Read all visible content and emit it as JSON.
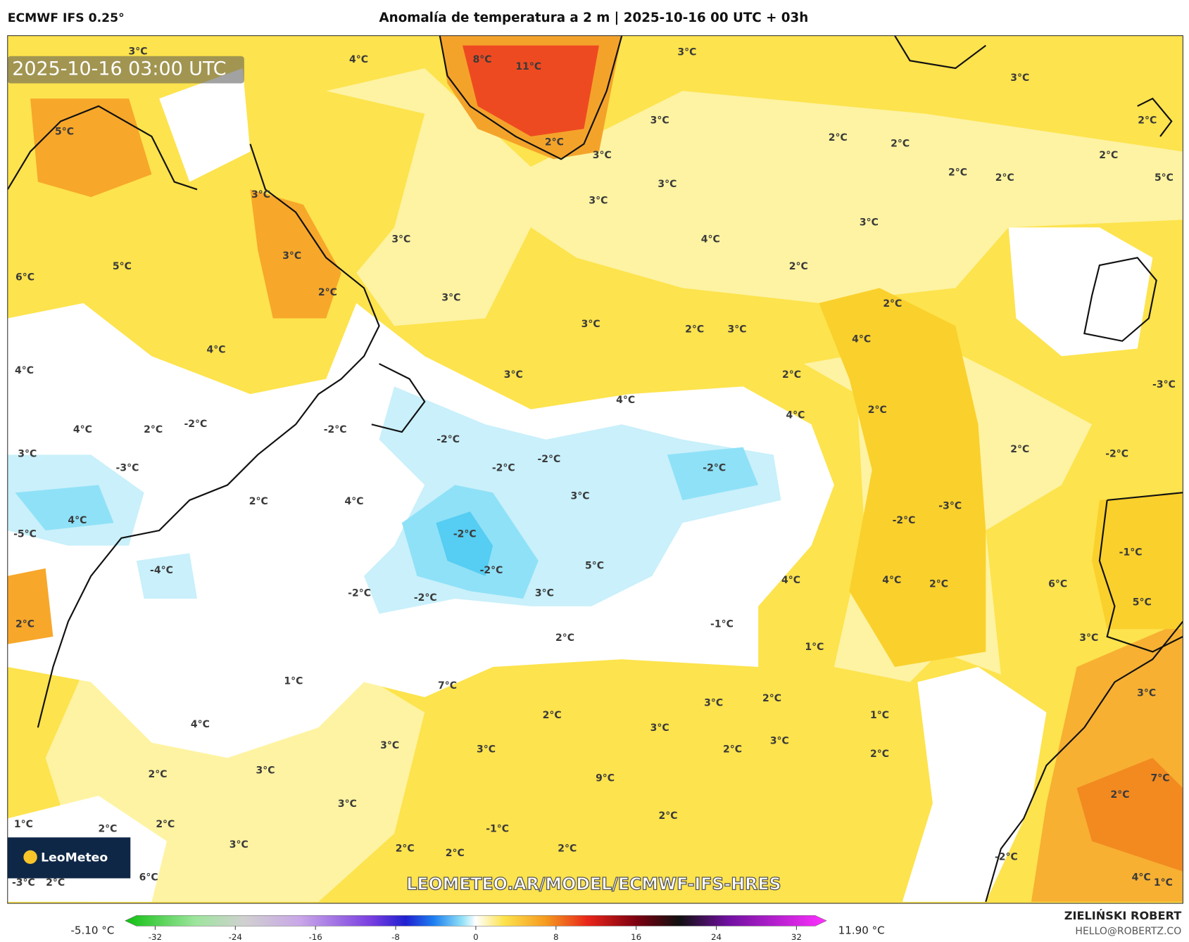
{
  "header": {
    "model": "ECMWF IFS 0.25°",
    "title": "Anomalía de temperatura a 2 m | 2025-10-16 00 UTC + 03h"
  },
  "map": {
    "valid_time": "2025-10-16 03:00 UTC",
    "watermark": "LEOMETEO.AR/MODEL/ECMWF-IFS-HRES",
    "logo": "LeoMeteo",
    "contour_labels": [
      "3°C",
      "4°C",
      "8°C",
      "11°C",
      "3°C",
      "3°C",
      "2°C",
      "5°C",
      "3°C",
      "2°C",
      "2°C",
      "3°C",
      "3°C",
      "2°C",
      "2°C",
      "2°C",
      "2°C",
      "5°C",
      "3°C",
      "3°C",
      "3°C",
      "3°C",
      "4°C",
      "5°C",
      "3°C",
      "2°C",
      "6°C",
      "2°C",
      "3°C",
      "2°C",
      "3°C",
      "2°C",
      "3°C",
      "4°C",
      "4°C",
      "4°C",
      "3°C",
      "2°C",
      "4°C",
      "4°C",
      "2°C",
      "-3°C",
      "-2°C",
      "4°C",
      "2°C",
      "-2°C",
      "-2°C",
      "3°C",
      "2°C",
      "-2°C",
      "-3°C",
      "-2°C",
      "-2°C",
      "-2°C",
      "3°C",
      "2°C",
      "4°C",
      "-3°C",
      "4°C",
      "-2°C",
      "-5°C",
      "-2°C",
      "-4°C",
      "-2°C",
      "5°C",
      "-1°C",
      "-2°C",
      "-2°C",
      "3°C",
      "4°C",
      "4°C",
      "2°C",
      "6°C",
      "5°C",
      "2°C",
      "-1°C",
      "2°C",
      "3°C",
      "1°C",
      "1°C",
      "7°C",
      "3°C",
      "2°C",
      "3°C",
      "2°C",
      "1°C",
      "4°C",
      "3°C",
      "3°C",
      "3°C",
      "3°C",
      "2°C",
      "2°C",
      "2°C",
      "3°C",
      "9°C",
      "7°C",
      "2°C",
      "3°C",
      "2°C",
      "1°C",
      "2°C",
      "2°C",
      "-1°C",
      "3°C",
      "2°C",
      "2°C",
      "2°C",
      "-2°C",
      "6°C",
      "4°C",
      "1°C",
      "-3°C",
      "2°C"
    ]
  },
  "colorbar": {
    "range": [
      -35,
      35
    ],
    "ticks": [
      -32,
      -24,
      -16,
      -8,
      0,
      8,
      16,
      24,
      32
    ],
    "min_label": "-5.10 °C",
    "max_label": "11.90 °C"
  },
  "credits": {
    "author": "ZIELIŃSKI ROBERT",
    "email": "HELLO@ROBERTZ.CO"
  }
}
